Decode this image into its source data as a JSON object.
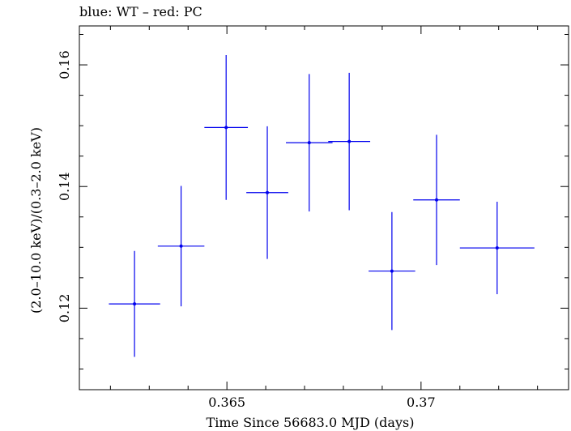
{
  "chart_data": {
    "type": "scatter",
    "title": "blue: WT – red: PC",
    "xlabel": "Time Since 56683.0 MJD (days)",
    "ylabel": "(2.0–10.0 keV)/(0.3–2.0 keV)",
    "xlim": [
      0.3612,
      0.3738
    ],
    "ylim": [
      0.1066,
      0.1664
    ],
    "xticks": [
      0.365,
      0.37
    ],
    "xtick_labels": [
      "0.365",
      "0.37"
    ],
    "yticks": [
      0.12,
      0.14,
      0.16
    ],
    "ytick_labels": [
      "0.12",
      "0.14",
      "0.16"
    ],
    "series_color": "#0000ee",
    "series": [
      {
        "points": [
          {
            "x": 0.36262,
            "xerr": 0.00066,
            "y": 0.1207,
            "yerr": 0.0087
          },
          {
            "x": 0.36382,
            "xerr": 0.0006,
            "y": 0.1302,
            "yerr": 0.0099
          },
          {
            "x": 0.36498,
            "xerr": 0.00056,
            "y": 0.1497,
            "yerr": 0.0119
          },
          {
            "x": 0.36604,
            "xerr": 0.00054,
            "y": 0.139,
            "yerr": 0.0109
          },
          {
            "x": 0.36712,
            "xerr": 0.0006,
            "y": 0.1472,
            "yerr": 0.0113
          },
          {
            "x": 0.36815,
            "xerr": 0.00054,
            "y": 0.1474,
            "yerr": 0.0113
          },
          {
            "x": 0.36925,
            "xerr": 0.0006,
            "y": 0.1261,
            "yerr": 0.0097
          },
          {
            "x": 0.3704,
            "xerr": 0.0006,
            "y": 0.1378,
            "yerr": 0.0107
          },
          {
            "x": 0.37196,
            "xerr": 0.00096,
            "y": 0.1299,
            "yerr": 0.0076
          }
        ]
      }
    ]
  }
}
